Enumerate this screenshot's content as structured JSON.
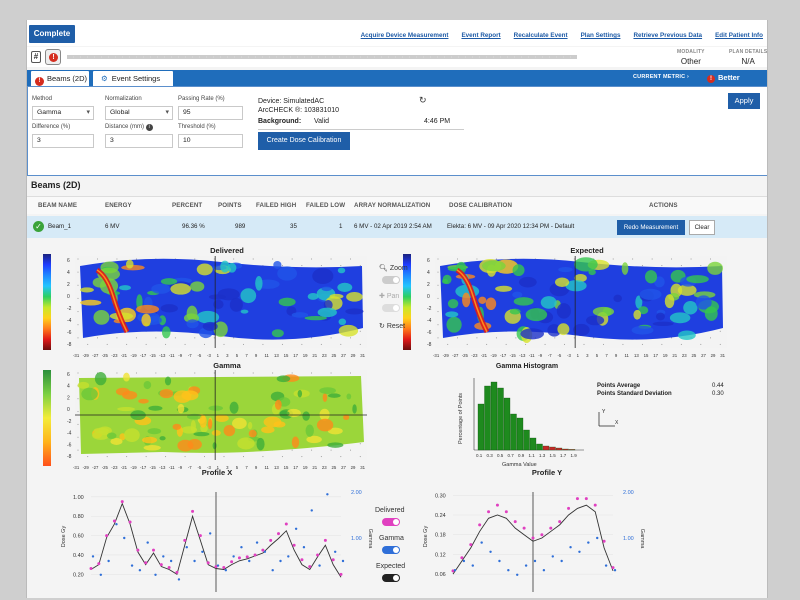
{
  "topbar": {
    "complete_label": "Complete",
    "links": [
      "Acquire Device Measurement",
      "Event Report",
      "Recalculate Event",
      "Plan Settings",
      "Retrieve Previous Data",
      "Edit Patient Info"
    ]
  },
  "meta": {
    "modality_key": "MODALITY",
    "modality_val": "Other",
    "plan_key": "PLAN DETAILS",
    "plan_val": "N/A"
  },
  "tabs": {
    "beams": "Beams (2D)",
    "event_settings": "Event Settings",
    "current_metric": "CURRENT METRIC",
    "better": "Better"
  },
  "settings": {
    "method_label": "Method",
    "method_value": "Gamma",
    "normalization_label": "Normalization",
    "normalization_value": "Global",
    "passing_label": "Passing Rate (%)",
    "passing_value": "95",
    "difference_label": "Difference (%)",
    "difference_value": "3",
    "distance_label": "Distance (mm)",
    "distance_value": "3",
    "threshold_label": "Threshold (%)",
    "threshold_value": "10",
    "device_line": "Device: SimulatedAC",
    "arccheck_line": "ArcCHECK ®: 103831010",
    "background_label": "Background:",
    "background_value": "Valid",
    "background_time": "4:46 PM",
    "calibration_button": "Create Dose Calibration",
    "apply_button": "Apply"
  },
  "beams": {
    "title": "Beams (2D)",
    "headers": [
      "BEAM NAME",
      "ENERGY",
      "PERCENT",
      "POINTS",
      "FAILED HIGH",
      "FAILED LOW",
      "ARRAY NORMALIZATION",
      "DOSE CALIBRATION",
      "ACTIONS"
    ],
    "row": {
      "name": "Beam_1",
      "energy": "6 MV",
      "percent": "96.36 %",
      "points": "989",
      "failed_high": "35",
      "failed_low": "1",
      "array_norm": "6 MV - 02 Apr 2019 2:54 AM",
      "dose_cal": "Elekta: 6 MV - 09 Apr 2020 12:34 PM - Default",
      "redo": "Redo Measurement",
      "clear": "Clear"
    }
  },
  "maps": {
    "delivered_title": "Delivered",
    "expected_title": "Expected",
    "gamma_title": "Gamma",
    "y_ticks": [
      "6",
      "4",
      "2",
      "0",
      "-2",
      "-4",
      "-6",
      "-8"
    ],
    "x_ticks": [
      "-31",
      "-29",
      "-27",
      "-25",
      "-23",
      "-21",
      "-19",
      "-17",
      "-15",
      "-13",
      "-11",
      "-9",
      "-7",
      "-5",
      "-3",
      "1",
      "3",
      "5",
      "7",
      "9",
      "11",
      "13",
      "15",
      "17",
      "19",
      "21",
      "23",
      "25",
      "27",
      "29",
      "31"
    ],
    "zoom": "Zoom",
    "pan": "Pan",
    "reset": "Reset"
  },
  "histogram": {
    "title": "Gamma Histogram",
    "ylabel": "Percentage of Points",
    "xlabel": "Gamma Value",
    "x_ticks": [
      "0.1",
      "0.3",
      "0.5",
      "0.7",
      "0.9",
      "1.1",
      "1.3",
      "1.5",
      "1.7",
      "1.9"
    ],
    "points_average_label": "Points Average",
    "points_average_value": "0.44",
    "points_sd_label": "Points Standard Deviation",
    "points_sd_value": "0.30",
    "axis_y": "Y",
    "axis_x": "X"
  },
  "legend": {
    "delivered": "Delivered",
    "gamma": "Gamma",
    "expected": "Expected"
  },
  "colors": {
    "brand": "#1f5ea8",
    "tabbar": "#1f6dbb",
    "delivered": "#e040c0",
    "gamma": "#2f6fd8",
    "expected": "#333333",
    "error": "#d52d1f",
    "hist_pass": "#1e8a1e",
    "hist_fail": "#c62828"
  },
  "chart_data": [
    {
      "type": "bar",
      "title": "Gamma Histogram",
      "xlabel": "Gamma Value",
      "ylabel": "Percentage of Points",
      "categories": [
        "0.1",
        "0.2",
        "0.3",
        "0.4",
        "0.5",
        "0.6",
        "0.7",
        "0.8",
        "0.9",
        "1.0",
        "1.1",
        "1.2",
        "1.3",
        "1.4",
        "1.5"
      ],
      "values": [
        23,
        32,
        34,
        31,
        26,
        18,
        16,
        10,
        6,
        3,
        2,
        1.5,
        1,
        0.5,
        0.3
      ]
    },
    {
      "type": "line",
      "title": "Profile X",
      "ylabel": "Dose Gy",
      "y2label": "Gamma",
      "ylim": [
        0.1,
        1.05
      ],
      "y2lim": [
        0,
        2.0
      ],
      "y_ticks": [
        "1.00",
        "0.80",
        "0.60",
        "0.40",
        "0.20"
      ],
      "y2_ticks": [
        "2.00",
        "1.00"
      ],
      "series": [
        {
          "name": "Expected",
          "values": [
            0.25,
            0.3,
            0.58,
            0.72,
            0.93,
            0.72,
            0.43,
            0.3,
            0.42,
            0.28,
            0.25,
            0.2,
            0.5,
            0.8,
            0.55,
            0.3,
            0.26,
            0.25,
            0.3,
            0.34,
            0.36,
            0.39,
            0.42,
            0.5,
            0.57,
            0.65,
            0.45,
            0.3,
            0.25,
            0.38,
            0.5,
            0.3,
            0.17
          ]
        },
        {
          "name": "Delivered",
          "values": [
            0.26,
            0.31,
            0.6,
            0.75,
            0.95,
            0.74,
            0.45,
            0.32,
            0.45,
            0.3,
            0.27,
            0.22,
            0.55,
            0.85,
            0.6,
            0.32,
            0.28,
            0.27,
            0.33,
            0.37,
            0.38,
            0.4,
            0.45,
            0.55,
            0.62,
            0.72,
            0.5,
            0.35,
            0.28,
            0.4,
            0.55,
            0.35,
            0.2
          ]
        },
        {
          "name": "Gamma",
          "values": [
            0.6,
            0.2,
            0.5,
            1.3,
            1.0,
            0.4,
            0.3,
            0.9,
            0.2,
            0.6,
            0.5,
            0.1,
            0.8,
            0.5,
            0.7,
            1.1,
            0.4,
            0.3,
            0.6,
            0.8,
            0.5,
            0.9,
            0.7,
            0.3,
            0.5,
            0.6,
            1.2,
            0.8,
            1.6,
            0.4,
            1.95,
            0.7,
            0.5
          ]
        }
      ]
    },
    {
      "type": "line",
      "title": "Profile Y",
      "ylabel": "Dose Gy",
      "y2label": "Gamma",
      "ylim": [
        0.03,
        0.31
      ],
      "y2lim": [
        0,
        2.0
      ],
      "y_ticks": [
        "0.30",
        "0.24",
        "0.18",
        "0.12",
        "0.06"
      ],
      "y2_ticks": [
        "2.00",
        "1.00"
      ],
      "series": [
        {
          "name": "Expected",
          "values": [
            0.06,
            0.1,
            0.14,
            0.19,
            0.23,
            0.24,
            0.23,
            0.2,
            0.18,
            0.16,
            0.17,
            0.19,
            0.21,
            0.24,
            0.26,
            0.27,
            0.25,
            0.14,
            0.07
          ]
        },
        {
          "name": "Delivered",
          "values": [
            0.07,
            0.11,
            0.15,
            0.21,
            0.25,
            0.27,
            0.25,
            0.22,
            0.2,
            0.17,
            0.18,
            0.2,
            0.22,
            0.26,
            0.29,
            0.29,
            0.27,
            0.16,
            0.08
          ]
        },
        {
          "name": "Gamma",
          "values": [
            0.3,
            0.5,
            0.4,
            0.9,
            0.7,
            0.5,
            0.3,
            0.2,
            0.4,
            0.5,
            0.3,
            0.6,
            0.5,
            0.8,
            0.7,
            0.9,
            1.0,
            0.4,
            0.3
          ]
        }
      ]
    }
  ]
}
